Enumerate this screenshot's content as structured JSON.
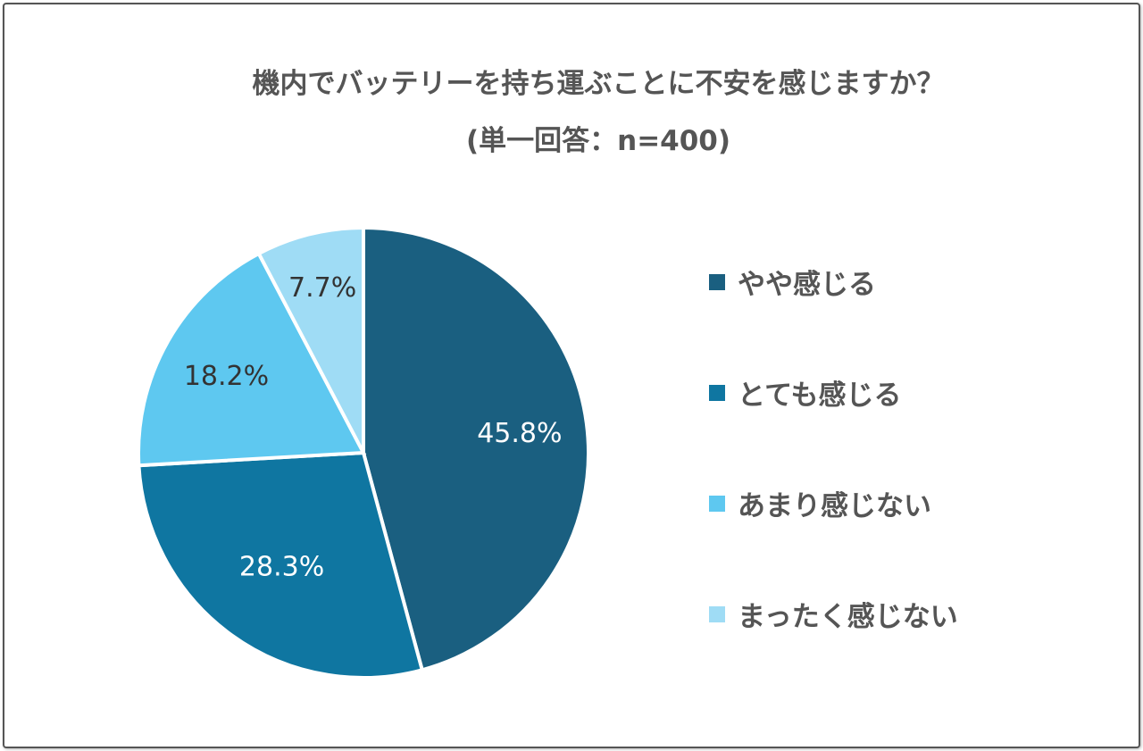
{
  "chart_data": {
    "type": "pie",
    "title": "機内でバッテリーを持ち運ぶことに不安を感じますか？",
    "subtitle": "(単一回答：n=400)",
    "categories": [
      "やや感じる",
      "とても感じる",
      "あまり感じない",
      "まったく感じない"
    ],
    "values": [
      45.8,
      28.3,
      18.2,
      7.7
    ],
    "labels": [
      "45.8%",
      "28.3%",
      "18.2%",
      "7.7%"
    ],
    "colors": [
      "#1a5f80",
      "#0f76a1",
      "#5ec8f0",
      "#9fdcf5"
    ],
    "label_colors": [
      "#ffffff",
      "#ffffff",
      "#333333",
      "#333333"
    ],
    "start": "top",
    "direction": "clockwise",
    "legend_position": "right"
  }
}
